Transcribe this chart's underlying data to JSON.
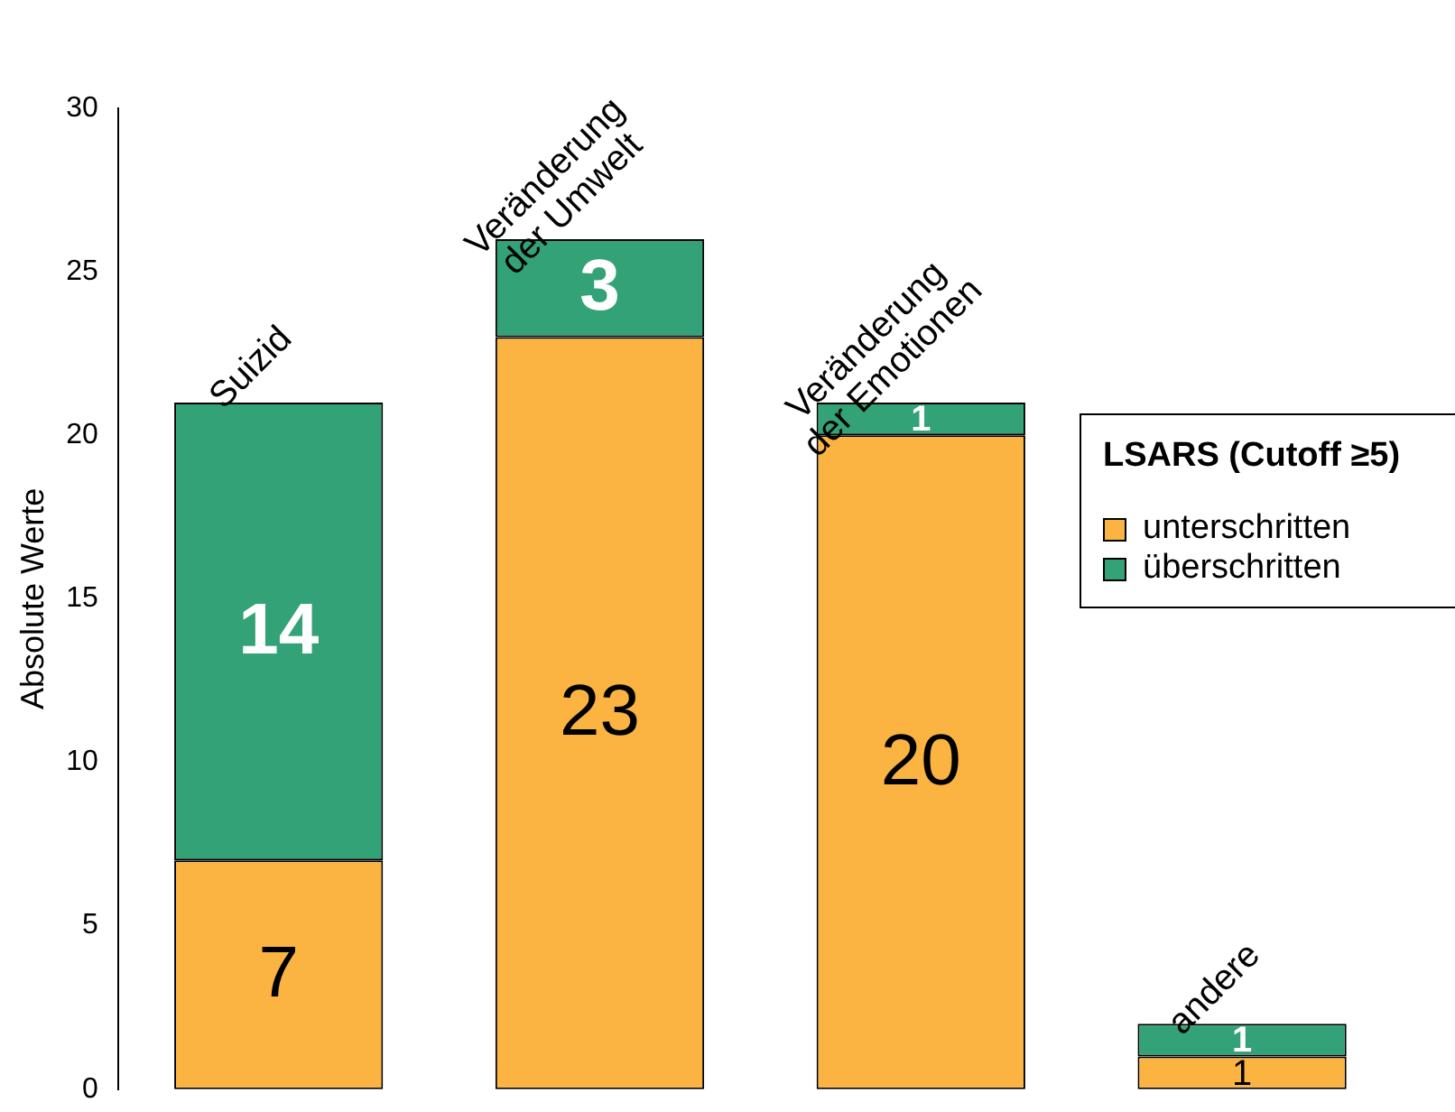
{
  "chart_data": {
    "type": "bar",
    "stacked": true,
    "ylabel": "Absolute Werte",
    "legend_title": "LSARS (Cutoff ≥5)",
    "legend": "top right",
    "data_labels": true,
    "grid": false,
    "tick_labels": "y",
    "categories": [
      "Suizid",
      "Veränderung der Umwelt",
      "Veränderung der Emotionen",
      "andere"
    ],
    "series": [
      {
        "name": "unterschritten",
        "color": "#fbb442",
        "values": [
          7,
          23,
          20,
          1
        ]
      },
      {
        "name": "überschritten",
        "color": "#33a277",
        "values": [
          14,
          3,
          1,
          1
        ]
      }
    ],
    "ylim": [
      0,
      30
    ],
    "yticks": [
      0,
      5,
      10,
      15,
      20,
      25,
      30
    ]
  }
}
